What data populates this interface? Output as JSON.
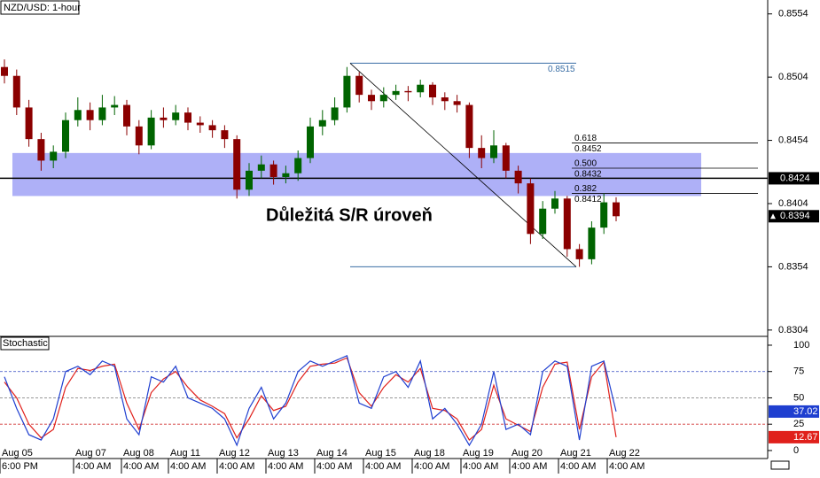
{
  "chart_data": {
    "type": "candlestick",
    "title": "NZD/USD: 1-hour",
    "annotation": "Důležitá S/R úroveň",
    "ylim": [
      0.8299,
      0.8565
    ],
    "yticks": [
      0.8554,
      0.8504,
      0.8454,
      0.8404,
      0.8354,
      0.8304
    ],
    "candles": [
      [
        0.8512,
        0.8518,
        0.8499,
        0.8505
      ],
      [
        0.8505,
        0.851,
        0.8474,
        0.848
      ],
      [
        0.848,
        0.8486,
        0.8449,
        0.8455
      ],
      [
        0.8455,
        0.846,
        0.843,
        0.8438
      ],
      [
        0.8438,
        0.845,
        0.8432,
        0.8445
      ],
      [
        0.8445,
        0.8476,
        0.844,
        0.847
      ],
      [
        0.847,
        0.8488,
        0.8465,
        0.8478
      ],
      [
        0.8478,
        0.8484,
        0.8462,
        0.847
      ],
      [
        0.847,
        0.849,
        0.8466,
        0.848
      ],
      [
        0.848,
        0.8489,
        0.8474,
        0.8482
      ],
      [
        0.8482,
        0.8486,
        0.8458,
        0.8465
      ],
      [
        0.8465,
        0.847,
        0.8443,
        0.845
      ],
      [
        0.845,
        0.8478,
        0.8447,
        0.8472
      ],
      [
        0.8472,
        0.848,
        0.8464,
        0.847
      ],
      [
        0.847,
        0.8482,
        0.8466,
        0.8476
      ],
      [
        0.8476,
        0.848,
        0.8462,
        0.8468
      ],
      [
        0.8468,
        0.8473,
        0.846,
        0.8466
      ],
      [
        0.8466,
        0.847,
        0.8456,
        0.8462
      ],
      [
        0.8462,
        0.8466,
        0.8448,
        0.8455
      ],
      [
        0.8455,
        0.8458,
        0.8408,
        0.8415
      ],
      [
        0.8415,
        0.8436,
        0.841,
        0.843
      ],
      [
        0.843,
        0.8442,
        0.8424,
        0.8435
      ],
      [
        0.8435,
        0.8438,
        0.8419,
        0.8425
      ],
      [
        0.8425,
        0.8434,
        0.842,
        0.8428
      ],
      [
        0.8428,
        0.8446,
        0.8422,
        0.844
      ],
      [
        0.844,
        0.8472,
        0.8436,
        0.8465
      ],
      [
        0.8465,
        0.8478,
        0.8458,
        0.847
      ],
      [
        0.847,
        0.8488,
        0.8466,
        0.848
      ],
      [
        0.848,
        0.8512,
        0.8476,
        0.8505
      ],
      [
        0.8505,
        0.8508,
        0.8484,
        0.849
      ],
      [
        0.849,
        0.8494,
        0.8478,
        0.8485
      ],
      [
        0.8485,
        0.8496,
        0.848,
        0.849
      ],
      [
        0.849,
        0.8498,
        0.8486,
        0.8493
      ],
      [
        0.8493,
        0.8497,
        0.8485,
        0.8492
      ],
      [
        0.8492,
        0.8502,
        0.8488,
        0.8498
      ],
      [
        0.8498,
        0.85,
        0.8482,
        0.8488
      ],
      [
        0.8488,
        0.8492,
        0.8478,
        0.8485
      ],
      [
        0.8485,
        0.849,
        0.8476,
        0.8482
      ],
      [
        0.8482,
        0.8484,
        0.844,
        0.8448
      ],
      [
        0.8448,
        0.8458,
        0.8432,
        0.844
      ],
      [
        0.844,
        0.8462,
        0.8436,
        0.845
      ],
      [
        0.845,
        0.8452,
        0.8424,
        0.843
      ],
      [
        0.843,
        0.8434,
        0.8412,
        0.842
      ],
      [
        0.842,
        0.8424,
        0.8372,
        0.838
      ],
      [
        0.838,
        0.8406,
        0.8376,
        0.84
      ],
      [
        0.84,
        0.8414,
        0.8396,
        0.8408
      ],
      [
        0.8408,
        0.841,
        0.8362,
        0.8368
      ],
      [
        0.8368,
        0.8372,
        0.8354,
        0.836
      ],
      [
        0.836,
        0.839,
        0.8356,
        0.8385
      ],
      [
        0.8385,
        0.8412,
        0.838,
        0.8405
      ],
      [
        0.8405,
        0.8409,
        0.839,
        0.8394
      ]
    ],
    "colors": {
      "up": "#006400",
      "down": "#8b0000"
    },
    "sr_zone": [
      0.841,
      0.8444
    ],
    "sr_level": 0.8424,
    "current_price": 0.8394,
    "fib": {
      "high": 0.8515,
      "low": 0.8354,
      "levels": [
        {
          "ratio": 0.618,
          "price": 0.8452
        },
        {
          "ratio": {
            "value": 0.5,
            "label": "0.500"
          },
          "price": 0.8432
        },
        {
          "ratio": 0.382,
          "price": 0.8412
        }
      ]
    },
    "x_labels": [
      [
        "Aug 05",
        "6:00 PM"
      ],
      [
        "Aug 07",
        "4:00 AM"
      ],
      [
        "Aug 08",
        "4:00 AM"
      ],
      [
        "Aug 11",
        "4:00 AM"
      ],
      [
        "Aug 12",
        "4:00 AM"
      ],
      [
        "Aug 13",
        "4:00 AM"
      ],
      [
        "Aug 14",
        "4:00 AM"
      ],
      [
        "Aug 15",
        "4:00 AM"
      ],
      [
        "Aug 18",
        "4:00 AM"
      ],
      [
        "Aug 19",
        "4:00 AM"
      ],
      [
        "Aug 20",
        "4:00 AM"
      ],
      [
        "Aug 21",
        "4:00 AM"
      ],
      [
        "Aug 22",
        "4:00 AM"
      ]
    ],
    "stochastic": {
      "title": "Stochastic",
      "ylim": [
        -7.6,
        106.7
      ],
      "yticks": [
        100,
        75,
        50,
        25,
        0
      ],
      "levels": [
        75,
        50,
        25
      ],
      "series": [
        {
          "name": "%K",
          "color": "#1f3fd0",
          "values": [
            70,
            40,
            15,
            10,
            30,
            75,
            80,
            72,
            85,
            80,
            30,
            15,
            70,
            65,
            80,
            50,
            45,
            40,
            30,
            5,
            40,
            60,
            30,
            45,
            75,
            85,
            80,
            85,
            90,
            45,
            40,
            70,
            75,
            60,
            85,
            30,
            40,
            25,
            5,
            25,
            75,
            20,
            25,
            15,
            75,
            85,
            80,
            10,
            80,
            85,
            37.02
          ]
        },
        {
          "name": "%D",
          "color": "#e0201b",
          "values": [
            65,
            50,
            25,
            12,
            20,
            60,
            78,
            76,
            80,
            82,
            45,
            20,
            55,
            68,
            75,
            60,
            48,
            42,
            35,
            12,
            30,
            52,
            38,
            42,
            65,
            80,
            82,
            83,
            88,
            55,
            42,
            60,
            72,
            65,
            78,
            40,
            38,
            30,
            10,
            20,
            62,
            30,
            24,
            18,
            60,
            82,
            84,
            20,
            70,
            84,
            12.67
          ]
        }
      ]
    }
  }
}
